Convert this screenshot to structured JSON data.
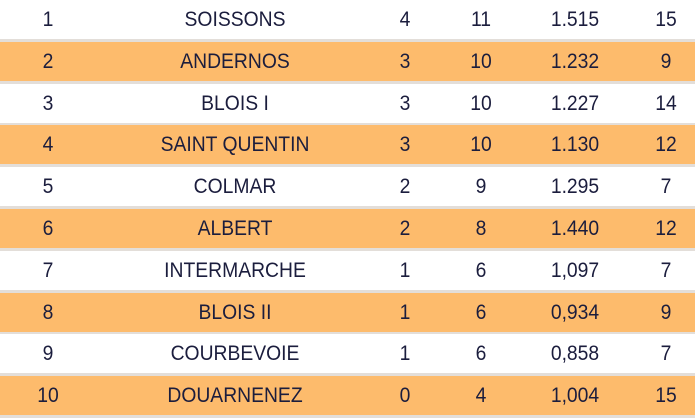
{
  "colors": {
    "row_even": "#ffffff",
    "row_odd": "#fdbb6c",
    "text": "#1b1d3d",
    "separator": "#e3ded9"
  },
  "rows": [
    {
      "rank": "1",
      "team": "SOISSONS",
      "c3": "4",
      "c4": "11",
      "c5": "1.515",
      "c6": "15"
    },
    {
      "rank": "2",
      "team": "ANDERNOS",
      "c3": "3",
      "c4": "10",
      "c5": "1.232",
      "c6": "9"
    },
    {
      "rank": "3",
      "team": "BLOIS I",
      "c3": "3",
      "c4": "10",
      "c5": "1.227",
      "c6": "14"
    },
    {
      "rank": "4",
      "team": "SAINT QUENTIN",
      "c3": "3",
      "c4": "10",
      "c5": "1.130",
      "c6": "12"
    },
    {
      "rank": "5",
      "team": "COLMAR",
      "c3": "2",
      "c4": "9",
      "c5": "1.295",
      "c6": "7"
    },
    {
      "rank": "6",
      "team": "ALBERT",
      "c3": "2",
      "c4": "8",
      "c5": "1.440",
      "c6": "12"
    },
    {
      "rank": "7",
      "team": "INTERMARCHE",
      "c3": "1",
      "c4": "6",
      "c5": "1,097",
      "c6": "7"
    },
    {
      "rank": "8",
      "team": "BLOIS II",
      "c3": "1",
      "c4": "6",
      "c5": "0,934",
      "c6": "9"
    },
    {
      "rank": "9",
      "team": "COURBEVOIE",
      "c3": "1",
      "c4": "6",
      "c5": "0,858",
      "c6": "7"
    },
    {
      "rank": "10",
      "team": "DOUARNENEZ",
      "c3": "0",
      "c4": "4",
      "c5": "1,004",
      "c6": "15"
    }
  ]
}
